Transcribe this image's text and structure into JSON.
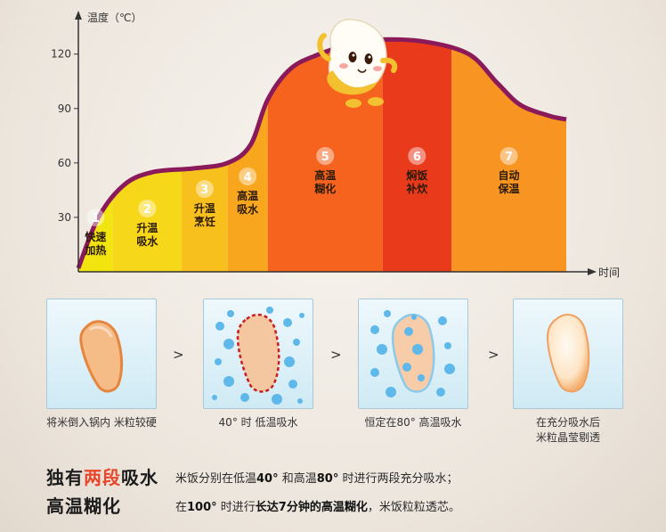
{
  "chart_data": {
    "type": "area",
    "ylabel": "温度（℃）",
    "xlabel": "时间",
    "y_ticks": [
      30,
      60,
      90,
      120
    ],
    "ylim": [
      0,
      140
    ],
    "curve": [
      [
        0,
        2
      ],
      [
        0.35,
        30
      ],
      [
        0.8,
        48
      ],
      [
        1.3,
        55
      ],
      [
        2,
        57
      ],
      [
        2.6,
        60
      ],
      [
        3.0,
        70
      ],
      [
        3.3,
        95
      ],
      [
        3.7,
        112
      ],
      [
        4.2,
        120
      ],
      [
        4.8,
        126
      ],
      [
        5.2,
        128
      ],
      [
        6,
        127
      ],
      [
        6.8,
        120
      ],
      [
        7.3,
        104
      ],
      [
        7.7,
        92
      ],
      [
        8.2,
        86
      ],
      [
        8.5,
        84
      ]
    ],
    "stages": [
      {
        "num": "1",
        "name": [
          "快速",
          "加热"
        ],
        "start": 0,
        "end": 0.6,
        "color": "#f2e40e"
      },
      {
        "num": "2",
        "name": [
          "升温",
          "吸水"
        ],
        "start": 0.6,
        "end": 1.8,
        "color": "#f7d719"
      },
      {
        "num": "3",
        "name": [
          "升温",
          "烹饪"
        ],
        "start": 1.8,
        "end": 2.6,
        "color": "#f8c01c"
      },
      {
        "num": "4",
        "name": [
          "高温",
          "吸水"
        ],
        "start": 2.6,
        "end": 3.3,
        "color": "#f8a61d"
      },
      {
        "num": "5",
        "name": [
          "高温",
          "糊化"
        ],
        "start": 3.3,
        "end": 5.3,
        "color": "#f6631e"
      },
      {
        "num": "6",
        "name": [
          "焖饭",
          "补炊"
        ],
        "start": 5.3,
        "end": 6.5,
        "color": "#ea3a1c"
      },
      {
        "num": "7",
        "name": [
          "自动",
          "保温"
        ],
        "start": 6.5,
        "end": 8.5,
        "color": "#f79422"
      }
    ]
  },
  "steps": [
    {
      "caption": [
        "将米倒入锅内 米粒较硬"
      ]
    },
    {
      "caption": [
        "40° 时 低温吸水"
      ]
    },
    {
      "caption": [
        "恒定在80° 高温吸水"
      ]
    },
    {
      "caption": [
        "在充分吸水后",
        "米粒晶莹剔透"
      ]
    }
  ],
  "step_arrow": ">",
  "bottom": {
    "line1": {
      "h_pre": "独有",
      "h_hl": "两段",
      "h_post": "吸水",
      "d1": "米饭分别在低温",
      "d2": "40°",
      "d3": " 和高温",
      "d4": "80°",
      "d5": " 时进行两段充分吸水；"
    },
    "line2": {
      "h": "高温糊化",
      "d1": "在",
      "d2": "100°",
      "d3": " 时进行",
      "d4": "长达7分钟的高温糊化",
      "d5": "，米饭粒粒透芯。"
    }
  },
  "colors": {
    "curve": "#8a1a5a",
    "axis": "#333333",
    "grain_fill": "#f7c49a",
    "grain_edge": "#e0894a",
    "bubble": "#3da6e0"
  }
}
